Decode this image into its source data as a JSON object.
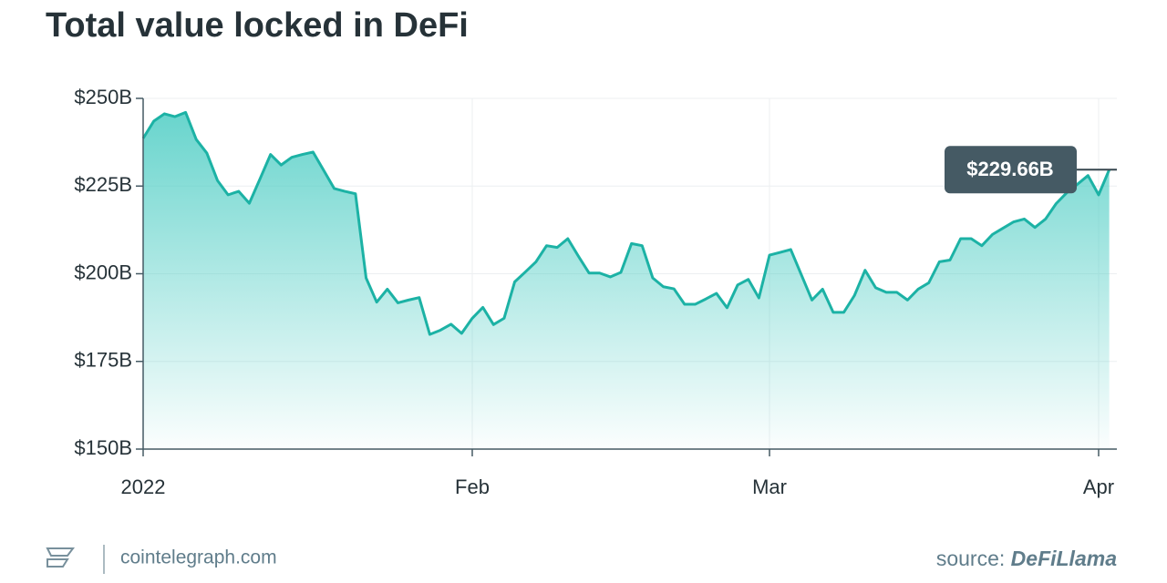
{
  "chart_data": {
    "type": "area",
    "title": "Total value locked in DeFi",
    "categories": [
      "2022",
      null,
      null,
      null,
      null,
      null,
      null,
      null,
      null,
      null,
      null,
      null,
      null,
      null,
      null,
      null,
      null,
      null,
      null,
      null,
      null,
      null,
      null,
      null,
      null,
      null,
      null,
      null,
      null,
      null,
      null,
      "Feb",
      null,
      null,
      null,
      null,
      null,
      null,
      null,
      null,
      null,
      null,
      null,
      null,
      null,
      null,
      null,
      null,
      null,
      null,
      null,
      null,
      null,
      null,
      null,
      null,
      null,
      null,
      null,
      "Mar",
      null,
      null,
      null,
      null,
      null,
      null,
      null,
      null,
      null,
      null,
      null,
      null,
      null,
      null,
      null,
      null,
      null,
      null,
      null,
      null,
      null,
      null,
      null,
      null,
      null,
      null,
      null,
      null,
      null,
      null,
      "Apr",
      null
    ],
    "values": [
      238.6,
      243.5,
      245.6,
      244.8,
      246.0,
      238.3,
      234.4,
      226.6,
      222.5,
      223.5,
      220.1,
      227.0,
      234.0,
      231.0,
      233.2,
      234.0,
      234.7,
      229.5,
      224.3,
      223.5,
      222.8,
      198.8,
      191.9,
      195.6,
      191.7,
      192.5,
      193.2,
      182.7,
      183.9,
      185.6,
      183.0,
      187.3,
      190.4,
      185.5,
      187.3,
      197.7,
      200.5,
      203.4,
      208.0,
      207.5,
      210.0,
      205.0,
      200.2,
      200.2,
      199.1,
      200.4,
      208.6,
      208.0,
      198.8,
      196.3,
      195.7,
      191.3,
      191.3,
      192.8,
      194.4,
      190.3,
      196.8,
      198.4,
      193.1,
      205.3,
      206.1,
      206.9,
      199.7,
      192.5,
      195.6,
      189.0,
      189.0,
      193.8,
      201.0,
      196.0,
      194.7,
      194.7,
      192.5,
      195.6,
      197.4,
      203.4,
      203.9,
      210.0,
      210.0,
      208.0,
      211.2,
      213.0,
      214.8,
      215.6,
      213.2,
      215.6,
      220.0,
      223.1,
      225.5,
      228.0,
      222.5,
      229.66
    ],
    "value_labels": [
      null,
      null,
      null,
      null,
      null,
      null,
      null,
      null,
      null,
      null,
      null,
      null,
      null,
      null,
      null,
      null,
      null,
      null,
      null,
      null,
      null,
      null,
      null,
      null,
      null,
      null,
      null,
      null,
      null,
      null,
      null,
      null,
      null,
      null,
      null,
      null,
      null,
      null,
      null,
      null,
      null,
      null,
      null,
      null,
      null,
      null,
      null,
      null,
      null,
      null,
      null,
      null,
      null,
      null,
      null,
      null,
      null,
      null,
      null,
      null,
      null,
      null,
      null,
      null,
      null,
      null,
      null,
      null,
      null,
      null,
      null,
      null,
      null,
      null,
      null,
      null,
      null,
      null,
      null,
      null,
      null,
      null,
      null,
      null,
      null,
      null,
      null,
      null,
      null,
      null,
      null,
      "$229.66B"
    ],
    "color": "#1cb2a5",
    "ylim": [
      150,
      250
    ],
    "yticks": [
      {
        "value": 150,
        "label": "$150B"
      },
      {
        "value": 175,
        "label": "$175B"
      },
      {
        "value": 200,
        "label": "$200B"
      },
      {
        "value": 225,
        "label": "$225B"
      },
      {
        "value": 250,
        "label": "$250B"
      }
    ],
    "grid": true,
    "footer": {
      "site": "cointelegraph.com",
      "source_prefix": "source:",
      "source": "DeFiLlama"
    }
  }
}
